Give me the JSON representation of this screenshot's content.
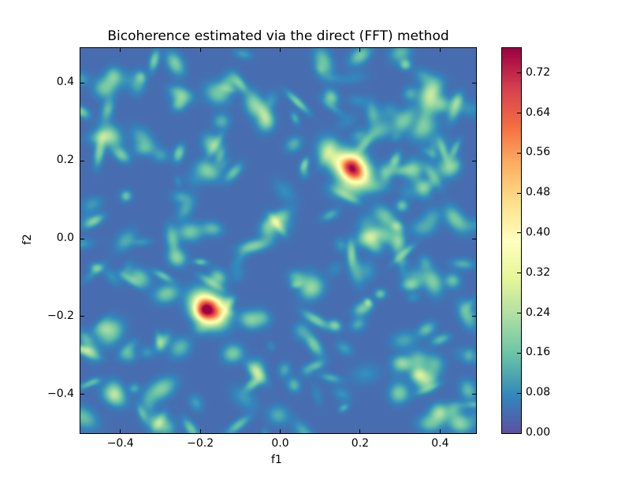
{
  "chart_data": {
    "type": "heatmap",
    "title": "Bicoherence estimated via the direct (FFT) method",
    "xlabel": "f1",
    "ylabel": "f2",
    "xlim": [
      -0.5,
      0.49
    ],
    "ylim": [
      -0.5,
      0.49
    ],
    "x_ticks": [
      {
        "v": -0.4,
        "label": "−0.4"
      },
      {
        "v": -0.2,
        "label": "−0.2"
      },
      {
        "v": 0.0,
        "label": "0.0"
      },
      {
        "v": 0.2,
        "label": "0.2"
      },
      {
        "v": 0.4,
        "label": "0.4"
      }
    ],
    "y_ticks": [
      {
        "v": 0.4,
        "label": "0.4"
      },
      {
        "v": 0.2,
        "label": "0.2"
      },
      {
        "v": 0.0,
        "label": "0.0"
      },
      {
        "v": -0.2,
        "label": "−0.2"
      },
      {
        "v": -0.4,
        "label": "−0.4"
      }
    ],
    "colormap": "Spectral_r",
    "colormap_colors": [
      "#5e4fa2",
      "#3288bd",
      "#66c2a5",
      "#abdda4",
      "#e6f598",
      "#ffffbf",
      "#fee08b",
      "#fdae61",
      "#f46d43",
      "#d53e4f",
      "#9e0142"
    ],
    "colorbar": {
      "range": [
        0.0,
        0.77
      ],
      "ticks": [
        {
          "v": 0.0,
          "label": "0.00"
        },
        {
          "v": 0.08,
          "label": "0.08"
        },
        {
          "v": 0.16,
          "label": "0.16"
        },
        {
          "v": 0.24,
          "label": "0.24"
        },
        {
          "v": 0.32,
          "label": "0.32"
        },
        {
          "v": 0.4,
          "label": "0.40"
        },
        {
          "v": 0.48,
          "label": "0.48"
        },
        {
          "v": 0.56,
          "label": "0.56"
        },
        {
          "v": 0.64,
          "label": "0.64"
        },
        {
          "v": 0.72,
          "label": "0.72"
        }
      ]
    },
    "background_level": [
      0.0,
      0.2
    ],
    "peaks": [
      {
        "f1": 0.18,
        "f2": 0.18,
        "value": 0.77
      },
      {
        "f1": -0.18,
        "f2": -0.18,
        "value": 0.77
      }
    ],
    "grid": false
  }
}
